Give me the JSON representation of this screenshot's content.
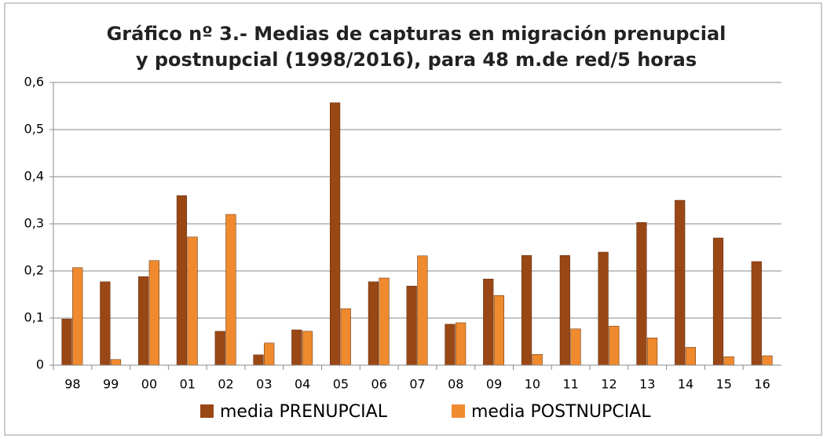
{
  "chart_data": {
    "type": "bar",
    "title": [
      "Gráfico nº 3.- Medias de capturas en migración prenupcial",
      "y postnupcial  (1998/2016), para 48 m.de red/5 horas"
    ],
    "categories": [
      "98",
      "99",
      "00",
      "01",
      "02",
      "03",
      "04",
      "05",
      "06",
      "07",
      "08",
      "09",
      "10",
      "11",
      "12",
      "13",
      "14",
      "15",
      "16"
    ],
    "series": [
      {
        "name": "media PRENUPCIAL",
        "color": "#9a4716",
        "values": [
          0.098,
          0.177,
          0.188,
          0.36,
          0.072,
          0.022,
          0.075,
          0.557,
          0.177,
          0.168,
          0.087,
          0.183,
          0.233,
          0.233,
          0.24,
          0.303,
          0.35,
          0.27,
          0.22
        ]
      },
      {
        "name": "media POSTNUPCIAL",
        "color": "#ef8a2e",
        "values": [
          0.207,
          0.012,
          0.222,
          0.272,
          0.32,
          0.047,
          0.072,
          0.12,
          0.185,
          0.232,
          0.09,
          0.148,
          0.023,
          0.077,
          0.083,
          0.058,
          0.038,
          0.018,
          0.02
        ]
      }
    ],
    "ylim": [
      0,
      0.6
    ],
    "yticks": [
      0,
      {
        "value": 0.1,
        "label": "0,1"
      },
      {
        "value": 0.2,
        "label": "0,2"
      },
      {
        "value": 0.3,
        "label": "0,3"
      },
      {
        "value": 0.4,
        "label": "0,4"
      },
      {
        "value": 0.5,
        "label": "0,5"
      },
      {
        "value": 0.6,
        "label": "0,6"
      }
    ],
    "grid": true,
    "legend": "bottom"
  }
}
